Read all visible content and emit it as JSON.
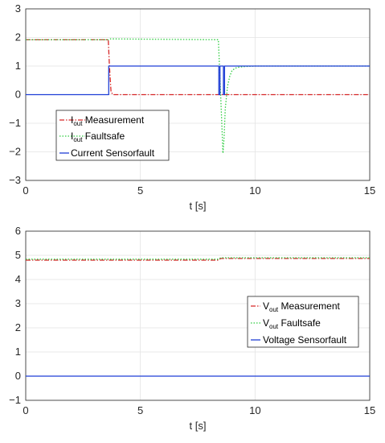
{
  "chart_data": [
    {
      "type": "line",
      "xlabel": "t [s]",
      "ylabel": "",
      "xlim": [
        0,
        15
      ],
      "ylim": [
        -3,
        3
      ],
      "xticks": [
        "0",
        "5",
        "10",
        "15"
      ],
      "yticks": [
        "-3",
        "-2",
        "-1",
        "0",
        "1",
        "2",
        "3"
      ],
      "grid": true,
      "legend_position": "bottom-left",
      "series": [
        {
          "name_base": "I",
          "name_sub": "out",
          "name_rest": " Measurement",
          "color": "#d62728",
          "style": "dashdot",
          "x": [
            0,
            3.6,
            3.65,
            3.72,
            3.8,
            15
          ],
          "y": [
            1.92,
            1.92,
            1.0,
            0.1,
            0.0,
            0.0
          ]
        },
        {
          "name_base": "I",
          "name_sub": "out",
          "name_rest": " Faultsafe",
          "color": "#2ecc40",
          "style": "dotted",
          "x": [
            0,
            3.6,
            3.7,
            8.4,
            8.5,
            8.6,
            8.65,
            8.7,
            8.8,
            8.9,
            9.0,
            9.2,
            9.5,
            10,
            15
          ],
          "y": [
            1.92,
            1.92,
            1.95,
            1.92,
            0.0,
            -2.05,
            -1.5,
            -0.5,
            0.3,
            0.65,
            0.85,
            0.95,
            0.98,
            1.0,
            1.0
          ]
        },
        {
          "name": "Current Sensorfault",
          "color": "#1f3fd6",
          "style": "solid",
          "x": [
            0,
            3.62,
            3.62,
            8.42,
            8.42,
            8.47,
            8.47,
            8.62,
            8.62,
            8.67,
            8.67,
            15
          ],
          "y": [
            0,
            0,
            1,
            1,
            0,
            0,
            1,
            1,
            0,
            0,
            1,
            1
          ]
        }
      ]
    },
    {
      "type": "line",
      "xlabel": "t [s]",
      "ylabel": "",
      "xlim": [
        0,
        15
      ],
      "ylim": [
        -1,
        6
      ],
      "xticks": [
        "0",
        "5",
        "10",
        "15"
      ],
      "yticks": [
        "-1",
        "0",
        "1",
        "2",
        "3",
        "4",
        "5",
        "6"
      ],
      "grid": true,
      "legend_position": "middle-right",
      "series": [
        {
          "name_base": "V",
          "name_sub": "out",
          "name_rest": " Measurement",
          "color": "#d62728",
          "style": "dashdot",
          "x": [
            0,
            8.4,
            8.5,
            15
          ],
          "y": [
            4.8,
            4.8,
            4.87,
            4.87
          ]
        },
        {
          "name_base": "V",
          "name_sub": "out",
          "name_rest": " Faultsafe",
          "color": "#2ecc40",
          "style": "dotted",
          "x": [
            0,
            8.4,
            8.5,
            15
          ],
          "y": [
            4.84,
            4.84,
            4.9,
            4.9
          ]
        },
        {
          "name": "Voltage Sensorfault",
          "color": "#1f3fd6",
          "style": "solid",
          "x": [
            0,
            15
          ],
          "y": [
            0,
            0
          ]
        }
      ]
    }
  ]
}
